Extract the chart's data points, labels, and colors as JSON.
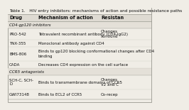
{
  "title": "Table 1.   HIV entry inhibitors: mechanisms of action and possible resistance paths",
  "col_headers": [
    "Drug",
    "Mechanism of action",
    "Resistan"
  ],
  "bg_color": "#f0ede6",
  "header_bg": "#dedad2",
  "border_color": "#999990",
  "text_color": "#111111",
  "title_fontsize": 4.2,
  "header_fontsize": 4.8,
  "data_fontsize": 4.0,
  "section_fontsize": 4.0,
  "rows": [
    {
      "type": "section",
      "text": "CD4-gp120 inhibitors"
    },
    {
      "type": "data",
      "drug": "PRO-542",
      "moa": "Tetravalent recombinant antibody (CD4-IgG2)",
      "res": "Changes\nsurround"
    },
    {
      "type": "data",
      "drug": "TNX-355",
      "moa": "Monoclonal antibody against CD4",
      "res": ""
    },
    {
      "type": "data",
      "drug": "BMS-806",
      "moa": "Binds to gp120 blocking conformational changes after CD4\nbinding",
      "res": ""
    },
    {
      "type": "data",
      "drug": "CADA",
      "moa": "Decreases CD4 expression on the cell surface",
      "res": ""
    },
    {
      "type": "section",
      "text": "CCR5 antagonists"
    },
    {
      "type": "data",
      "drug": "SCH-C, SCH-\nD",
      "moa": "Binds to transmembrane domains of CCR5",
      "res": "Changes\nV2 and C"
    },
    {
      "type": "data",
      "drug": "GWI73148",
      "moa": "Binds to ECL2 of CCR5",
      "res": "Co-recep"
    }
  ]
}
